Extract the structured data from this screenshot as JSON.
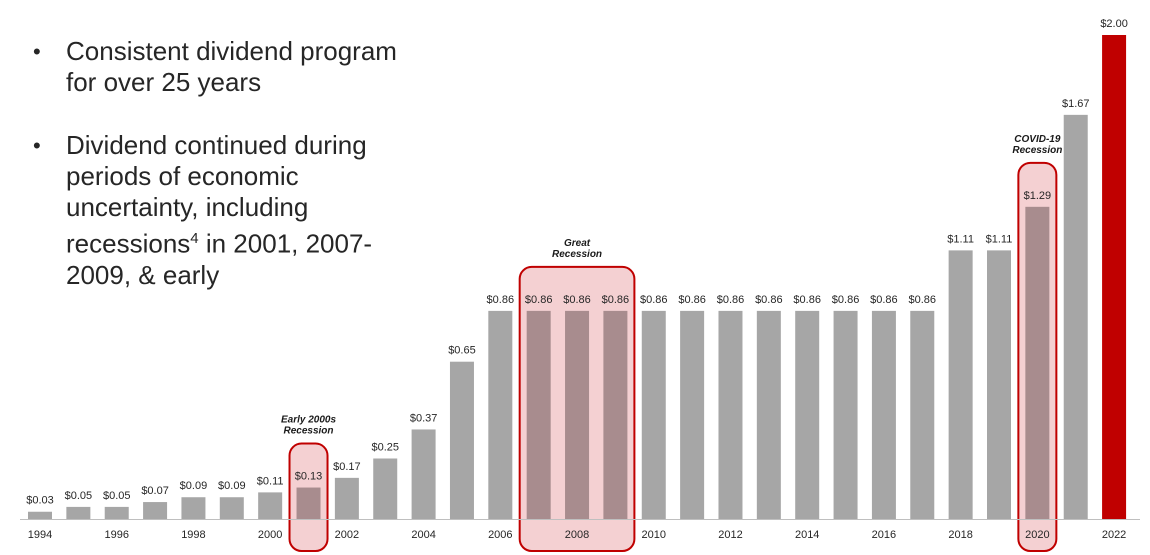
{
  "bullets": [
    {
      "text": "Consistent dividend program for over 25 years"
    },
    {
      "text": "Dividend continued during periods of economic uncertainty, including recessions",
      "sup": "4",
      "tail": " in 2001, 2007-2009, & early"
    }
  ],
  "chart_data": {
    "type": "bar",
    "title": "",
    "xlabel": "",
    "ylabel": "",
    "ylim": [
      0,
      2.0
    ],
    "categories": [
      "1994",
      "1995",
      "1996",
      "1997",
      "1998",
      "1999",
      "2000",
      "2001",
      "2002",
      "2003",
      "2004",
      "2005",
      "2006",
      "2007",
      "2008",
      "2009",
      "2010",
      "2011",
      "2012",
      "2013",
      "2014",
      "2015",
      "2016",
      "2017",
      "2018",
      "2019",
      "2020",
      "2021",
      "2022"
    ],
    "values": [
      0.03,
      0.05,
      0.05,
      0.07,
      0.09,
      0.09,
      0.11,
      0.13,
      0.17,
      0.25,
      0.37,
      0.65,
      0.86,
      0.86,
      0.86,
      0.86,
      0.86,
      0.86,
      0.86,
      0.86,
      0.86,
      0.86,
      0.86,
      0.86,
      1.11,
      1.11,
      1.29,
      1.67,
      2.0
    ],
    "value_labels": [
      "$0.03",
      "$0.05",
      "$0.05",
      "$0.07",
      "$0.09",
      "$0.09",
      "$0.11",
      "$0.13",
      "$0.17",
      "$0.25",
      "$0.37",
      "$0.65",
      "$0.86",
      "$0.86",
      "$0.86",
      "$0.86",
      "$0.86",
      "$0.86",
      "$0.86",
      "$0.86",
      "$0.86",
      "$0.86",
      "$0.86",
      "$0.86",
      "$1.11",
      "$1.11",
      "$1.29",
      "$1.67",
      "$2.00"
    ],
    "tick_labels": [
      "1994",
      "1996",
      "1998",
      "2000",
      "2002",
      "2004",
      "2006",
      "2008",
      "2010",
      "2012",
      "2014",
      "2016",
      "2018",
      "2020",
      "2022"
    ],
    "colors": {
      "bar": "#a6a6a6",
      "recession_bar": "#a88c8e",
      "highlight_bar": "#c00000",
      "box_fill": "#f4d0d2",
      "box_stroke": "#c00000"
    },
    "highlight_category": "2022",
    "recessions": [
      {
        "lines": [
          "Early 2000s",
          "Recession"
        ],
        "start": "2001",
        "end": "2001"
      },
      {
        "lines": [
          "Great",
          "Recession"
        ],
        "start": "2007",
        "end": "2009"
      },
      {
        "lines": [
          "COVID-19",
          "Recession"
        ],
        "start": "2020",
        "end": "2020"
      }
    ]
  }
}
